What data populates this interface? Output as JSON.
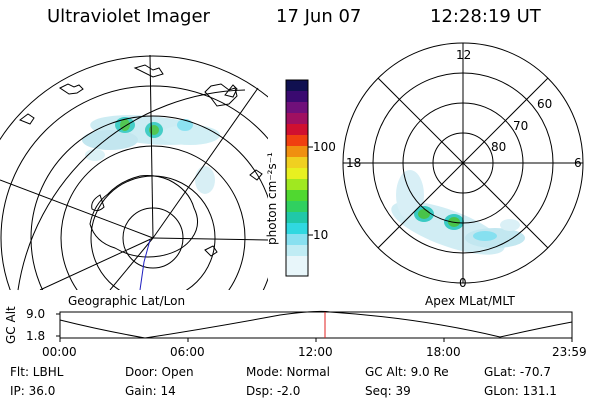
{
  "header": {
    "instrument": "Ultraviolet Imager",
    "date": "17 Jun 07",
    "time": "12:28:19 UT"
  },
  "colorbar": {
    "unit": "photon cm⁻²s⁻¹",
    "ticks": [
      "100",
      "10"
    ],
    "colors": [
      "#101060",
      "#3a0a6a",
      "#70107a",
      "#a01060",
      "#c01040",
      "#e02020",
      "#f06010",
      "#f0a010",
      "#f0e020",
      "#c8f020",
      "#80e020",
      "#30d040",
      "#20c0a0",
      "#30d0e0",
      "#a0e0f0",
      "#e0f4f8"
    ]
  },
  "left_map": {
    "label": "Geographic Lat/Lon"
  },
  "right_map": {
    "label": "Apex MLat/MLT",
    "mlt_labels": {
      "top": "12",
      "left": "18",
      "right": "6",
      "bottom": "0"
    },
    "lat_labels": [
      "60",
      "70",
      "80"
    ]
  },
  "alt_panel": {
    "ylabel": "GC Alt",
    "yticks": [
      "9.0",
      "1.8"
    ],
    "xticks": [
      "00:00",
      "06:00",
      "12:00",
      "18:00",
      "23:59"
    ],
    "current_time_marker": "12:28"
  },
  "status": {
    "row1": {
      "flt": "Flt: LBHL",
      "door": "Door: Open",
      "mode": "Mode: Normal",
      "gcalt": "GC Alt: 9.0 Re",
      "glat": "GLat: -70.7"
    },
    "row2": {
      "ip": "IP: 36.0",
      "gain": "Gain: 14",
      "dsp": "Dsp:   -2.0",
      "seq": "Seq: 39",
      "glon": "GLon: 131.1"
    }
  }
}
